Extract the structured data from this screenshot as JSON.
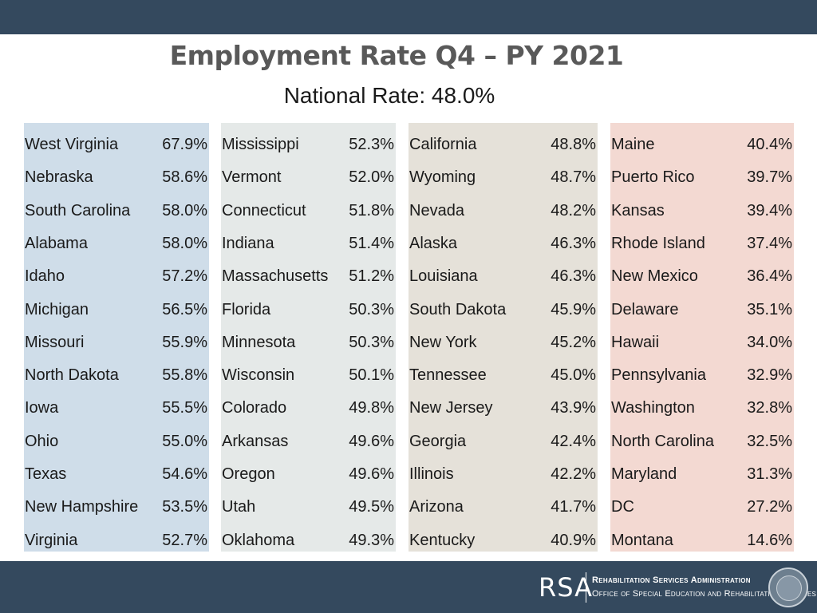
{
  "header": {
    "title": "Employment Rate Q4 – PY 2021",
    "subtitle": "National Rate: 48.0%"
  },
  "columns": [
    {
      "color": "#cfdde9",
      "rows": [
        {
          "state": "West Virginia",
          "rate": "67.9%"
        },
        {
          "state": "Nebraska",
          "rate": "58.6%"
        },
        {
          "state": "South Carolina",
          "rate": "58.0%"
        },
        {
          "state": "Alabama",
          "rate": "58.0%"
        },
        {
          "state": "Idaho",
          "rate": "57.2%"
        },
        {
          "state": "Michigan",
          "rate": "56.5%"
        },
        {
          "state": "Missouri",
          "rate": "55.9%"
        },
        {
          "state": "North Dakota",
          "rate": "55.8%"
        },
        {
          "state": "Iowa",
          "rate": "55.5%"
        },
        {
          "state": "Ohio",
          "rate": "55.0%"
        },
        {
          "state": "Texas",
          "rate": "54.6%"
        },
        {
          "state": "New Hampshire",
          "rate": "53.5%"
        },
        {
          "state": "Virginia",
          "rate": "52.7%"
        }
      ]
    },
    {
      "color": "#e5e9e8",
      "rows": [
        {
          "state": "Mississippi",
          "rate": "52.3%"
        },
        {
          "state": "Vermont",
          "rate": "52.0%"
        },
        {
          "state": "Connecticut",
          "rate": "51.8%"
        },
        {
          "state": "Indiana",
          "rate": "51.4%"
        },
        {
          "state": "Massachusetts",
          "rate": "51.2%"
        },
        {
          "state": "Florida",
          "rate": "50.3%"
        },
        {
          "state": "Minnesota",
          "rate": "50.3%"
        },
        {
          "state": "Wisconsin",
          "rate": "50.1%"
        },
        {
          "state": "Colorado",
          "rate": "49.8%"
        },
        {
          "state": "Arkansas",
          "rate": "49.6%"
        },
        {
          "state": "Oregon",
          "rate": "49.6%"
        },
        {
          "state": "Utah",
          "rate": "49.5%"
        },
        {
          "state": "Oklahoma",
          "rate": "49.3%"
        }
      ]
    },
    {
      "color": "#e5e1d9",
      "rows": [
        {
          "state": "California",
          "rate": "48.8%"
        },
        {
          "state": "Wyoming",
          "rate": "48.7%"
        },
        {
          "state": "Nevada",
          "rate": "48.2%"
        },
        {
          "state": "Alaska",
          "rate": "46.3%"
        },
        {
          "state": "Louisiana",
          "rate": "46.3%"
        },
        {
          "state": "South Dakota",
          "rate": "45.9%"
        },
        {
          "state": "New York",
          "rate": "45.2%"
        },
        {
          "state": "Tennessee",
          "rate": "45.0%"
        },
        {
          "state": "New Jersey",
          "rate": "43.9%"
        },
        {
          "state": "Georgia",
          "rate": "42.4%"
        },
        {
          "state": "Illinois",
          "rate": "42.2%"
        },
        {
          "state": "Arizona",
          "rate": "41.7%"
        },
        {
          "state": "Kentucky",
          "rate": "40.9%"
        }
      ]
    },
    {
      "color": "#f3d9d2",
      "rows": [
        {
          "state": "Maine",
          "rate": "40.4%"
        },
        {
          "state": "Puerto Rico",
          "rate": "39.7%"
        },
        {
          "state": "Kansas",
          "rate": "39.4%"
        },
        {
          "state": "Rhode Island",
          "rate": "37.4%"
        },
        {
          "state": "New Mexico",
          "rate": "36.4%"
        },
        {
          "state": "Delaware",
          "rate": "35.1%"
        },
        {
          "state": "Hawaii",
          "rate": "34.0%"
        },
        {
          "state": "Pennsylvania",
          "rate": "32.9%"
        },
        {
          "state": "Washington",
          "rate": "32.8%"
        },
        {
          "state": "North Carolina",
          "rate": "32.5%"
        },
        {
          "state": "Maryland",
          "rate": "31.3%"
        },
        {
          "state": "DC",
          "rate": "27.2%"
        },
        {
          "state": "Montana",
          "rate": "14.6%"
        }
      ]
    }
  ],
  "footer": {
    "logo_text": "RSA",
    "org_name": "Rehabilitation Services Administration",
    "org_parent": "Office of Special Education and Rehabilitative Services",
    "seal_icon": "department-seal-icon",
    "bar_color": "#34495e"
  }
}
